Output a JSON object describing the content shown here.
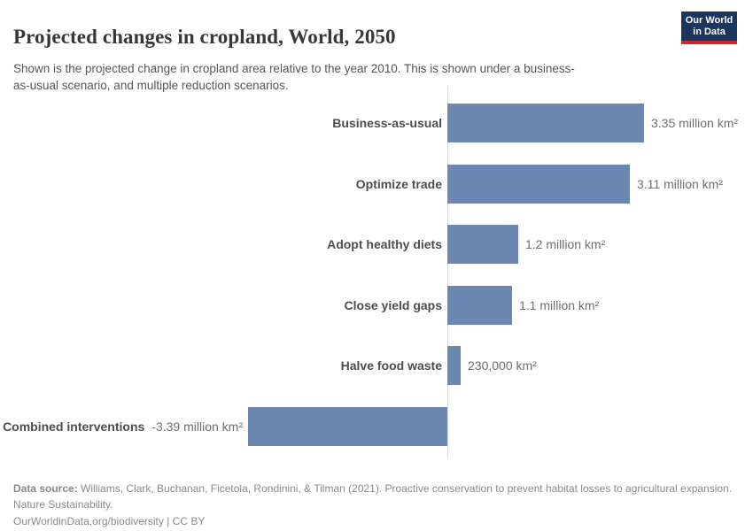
{
  "header": {
    "title": "Projected changes in cropland, World, 2050",
    "subtitle": "Shown is the projected change in cropland area relative to the year 2010. This is shown under a business-as-usual scenario, and multiple reduction scenarios.",
    "logo_line1": "Our World",
    "logo_line2": "in Data"
  },
  "chart_data": {
    "type": "bar",
    "orientation": "horizontal",
    "title": "Projected changes in cropland, World, 2050",
    "unit": "km²",
    "categories": [
      "Business-as-usual",
      "Optimize trade",
      "Adopt healthy diets",
      "Close yield gaps",
      "Halve food waste",
      "Combined interventions"
    ],
    "values_million_km2": [
      3.35,
      3.11,
      1.2,
      1.1,
      0.23,
      -3.39
    ],
    "value_labels": [
      "3.35 million km²",
      "3.11 million km²",
      "1.2 million km²",
      "1.1 million km²",
      "230,000 km²",
      "-3.39 million km²"
    ],
    "xlim_million_km2": [
      -3.39,
      3.35
    ],
    "baseline_value": 0,
    "grid": false,
    "legend": false,
    "bar_color": "#6d87b3"
  },
  "footer": {
    "source_label": "Data source:",
    "source_text": " Williams, Clark, Buchanan, Ficetola, Rondinini, & Tilman (2021). Proactive conservation to prevent habitat losses to agricultural expansion. Nature Sustainability.",
    "link": "OurWorldinData.org/biodiversity",
    "separator": " | ",
    "license": "CC BY"
  },
  "colors": {
    "bar": "#6d87b3",
    "axis": "#dcdcdc",
    "logo_navy": "#1a355e",
    "logo_red": "#cf2428",
    "title_text": "#373737",
    "subtitle_text": "#565656",
    "category_text": "#4d4d4d",
    "value_text": "#6e6e6e",
    "footer_text": "#8a8a8a"
  }
}
